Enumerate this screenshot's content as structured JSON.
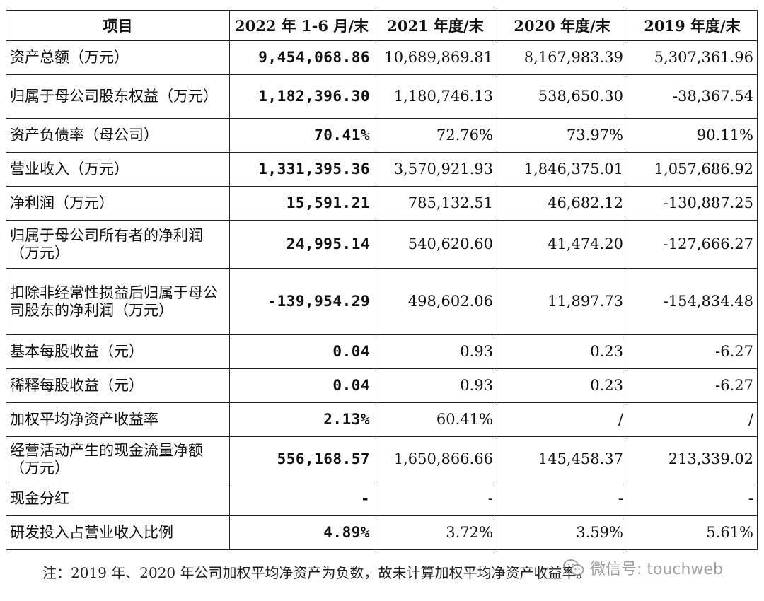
{
  "table": {
    "headers": [
      "项目",
      "2022 年 1-6 月/末",
      "2021 年度/末",
      "2020 年度/末",
      "2019 年度/末"
    ],
    "rows": [
      {
        "label": "资产总额（万元）",
        "values": [
          "9,454,068.86",
          "10,689,869.81",
          "8,167,983.39",
          "5,307,361.96"
        ]
      },
      {
        "label": "归属于母公司股东权益（万元）",
        "values": [
          "1,182,396.30",
          "1,180,746.13",
          "538,650.30",
          "-38,367.54"
        ]
      },
      {
        "label": "资产负债率（母公司）",
        "values": [
          "70.41%",
          "72.76%",
          "73.97%",
          "90.11%"
        ]
      },
      {
        "label": "营业收入（万元）",
        "values": [
          "1,331,395.36",
          "3,570,921.93",
          "1,846,375.01",
          "1,057,686.92"
        ]
      },
      {
        "label": "净利润（万元）",
        "values": [
          "15,591.21",
          "785,132.51",
          "46,682.12",
          "-130,887.25"
        ]
      },
      {
        "label": "归属于母公司所有者的净利润（万元）",
        "values": [
          "24,995.14",
          "540,620.60",
          "41,474.20",
          "-127,666.27"
        ]
      },
      {
        "label": "扣除非经常性损益后归属于母公司股东的净利润（万元）",
        "values": [
          "-139,954.29",
          "498,602.06",
          "11,897.73",
          "-154,834.48"
        ]
      },
      {
        "label": "基本每股收益（元）",
        "values": [
          "0.04",
          "0.93",
          "0.23",
          "-6.27"
        ]
      },
      {
        "label": "稀释每股收益（元）",
        "values": [
          "0.04",
          "0.93",
          "0.23",
          "-6.27"
        ]
      },
      {
        "label": "加权平均净资产收益率",
        "values": [
          "2.13%",
          "60.41%",
          "/",
          "/"
        ]
      },
      {
        "label": "经营活动产生的现金流量净额（万元）",
        "values": [
          "556,168.57",
          "1,650,866.66",
          "145,458.37",
          "213,339.02"
        ]
      },
      {
        "label": "现金分红",
        "values": [
          "-",
          "-",
          "-",
          "-"
        ]
      },
      {
        "label": "研发投入占营业收入比例",
        "values": [
          "4.89%",
          "3.72%",
          "3.59%",
          "5.61%"
        ]
      }
    ]
  },
  "note": "注：2019 年、2020 年公司加权平均净资产为负数，故未计算加权平均净资产收益率。",
  "watermark": {
    "text": "微信号: touchweb",
    "icon": "wechat-icon"
  }
}
